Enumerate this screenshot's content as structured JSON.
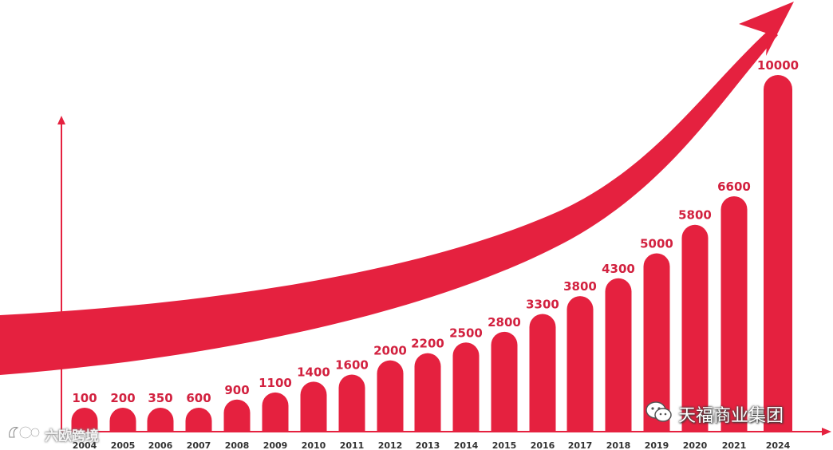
{
  "chart_data": {
    "type": "bar",
    "categories": [
      "2004",
      "2005",
      "2006",
      "2007",
      "2008",
      "2009",
      "2010",
      "2011",
      "2012",
      "2013",
      "2014",
      "2015",
      "2016",
      "2017",
      "2018",
      "2019",
      "2020",
      "2021",
      "2024"
    ],
    "values": [
      100,
      200,
      350,
      600,
      900,
      1100,
      1400,
      1600,
      2000,
      2200,
      2500,
      2800,
      3300,
      3800,
      4300,
      5000,
      5800,
      6600,
      10000
    ],
    "value_labels": [
      "100",
      "200",
      "350",
      "600",
      "900",
      "1100",
      "1400",
      "1600",
      "2000",
      "2200",
      "2500",
      "2800",
      "3300",
      "3800",
      "4300",
      "5000",
      "5800",
      "6600",
      "10000"
    ],
    "title": "",
    "xlabel": "",
    "ylabel": "",
    "ylim": [
      0,
      10000
    ],
    "grid": false,
    "legend": "none",
    "bar_color": "#E5213F",
    "label_color": "#D2213F",
    "axis_color": "#E5213F",
    "trend_arrow": "upward-curve"
  },
  "watermarks": {
    "right_text": "天福商业集团",
    "right_icon": "wechat-icon",
    "left_text": "六欧跨境",
    "left_icon": "brand-logo-icon"
  }
}
